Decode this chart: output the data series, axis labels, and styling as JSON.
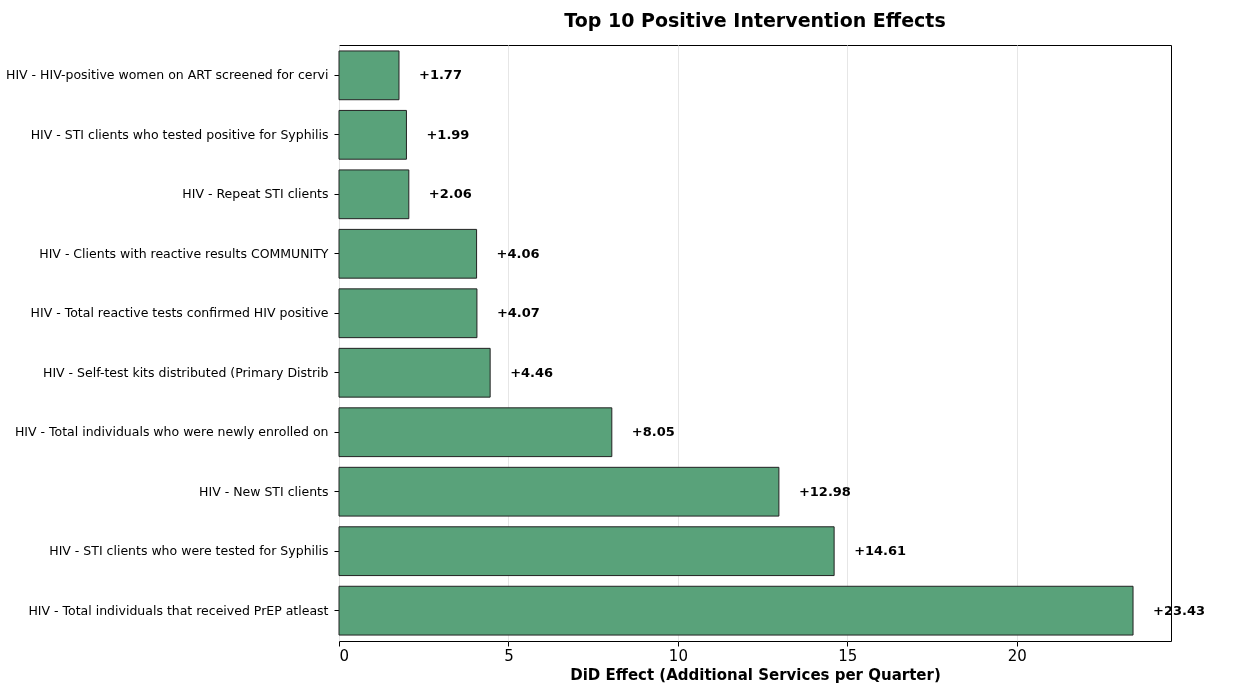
{
  "chart_data": {
    "type": "bar",
    "orientation": "horizontal",
    "title": "Top 10 Positive Intervention Effects",
    "xlabel": "DiD Effect (Additional Services per Quarter)",
    "categories": [
      "HIV - HIV-positive women on ART screened for cervi",
      "HIV - STI clients who tested positive for Syphilis",
      "HIV - Repeat STI clients",
      "HIV - Clients with reactive results COMMUNITY",
      "HIV - Total reactive tests confirmed HIV positive ",
      "HIV - Self-test kits distributed  (Primary Distrib",
      "HIV - Total individuals who were newly enrolled on",
      "HIV - New STI clients",
      "HIV - STI clients who were tested for Syphilis",
      "HIV - Total individuals that received PrEP atleast"
    ],
    "values": [
      1.77,
      1.99,
      2.06,
      4.06,
      4.07,
      4.46,
      8.05,
      12.98,
      14.61,
      23.43
    ],
    "value_labels": [
      "+1.77",
      "+1.99",
      "+2.06",
      "+4.06",
      "+4.07",
      "+4.46",
      "+8.05",
      "+12.98",
      "+14.61",
      "+23.43"
    ],
    "color": "#59a27a",
    "xlim": [
      0,
      24.55
    ],
    "xticks": [
      0,
      5,
      10,
      15,
      20
    ],
    "grid": "x"
  }
}
